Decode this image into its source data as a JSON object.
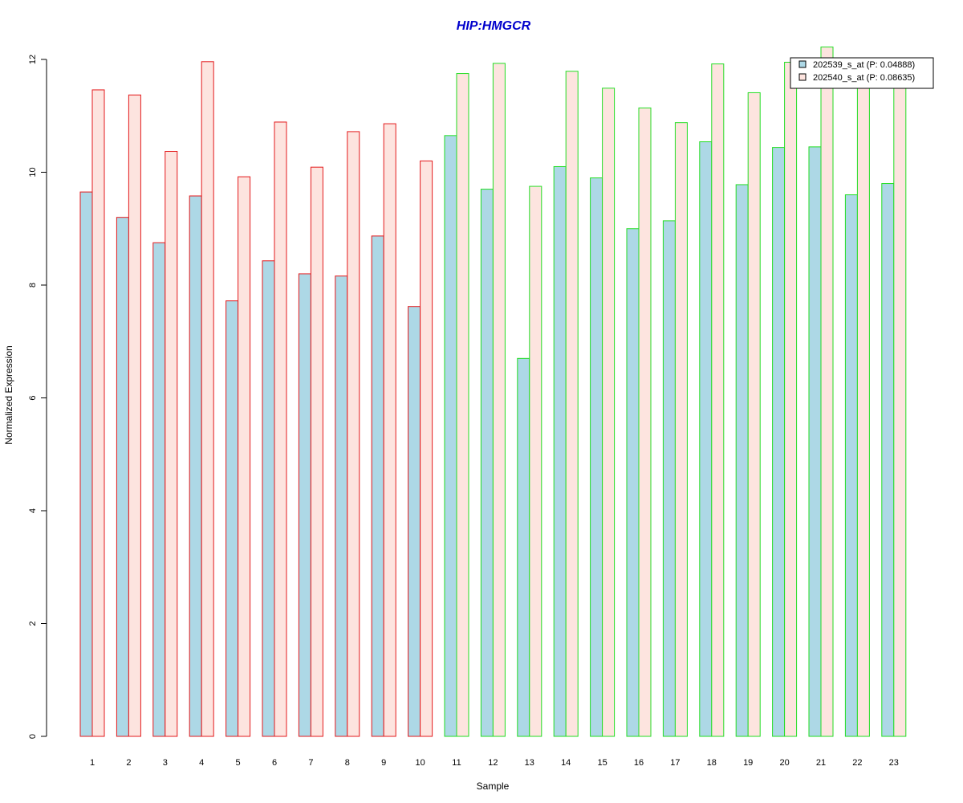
{
  "chart_data": {
    "type": "bar",
    "title": "HIP:HMGCR",
    "xlabel": "Sample",
    "ylabel": "Normalized Expression",
    "ylim": [
      0,
      12
    ],
    "yticks": [
      0,
      2,
      4,
      6,
      8,
      10,
      12
    ],
    "categories": [
      "1",
      "2",
      "3",
      "4",
      "5",
      "6",
      "7",
      "8",
      "9",
      "10",
      "11",
      "12",
      "13",
      "14",
      "15",
      "16",
      "17",
      "18",
      "19",
      "20",
      "21",
      "22",
      "23"
    ],
    "series": [
      {
        "name": "202539_s_at (P: 0.04888)",
        "fill": "#add8e6",
        "values": [
          9.65,
          9.2,
          8.75,
          9.58,
          7.72,
          8.43,
          8.2,
          8.16,
          8.87,
          7.62,
          10.65,
          9.7,
          6.7,
          10.1,
          9.9,
          9.0,
          9.14,
          10.54,
          9.78,
          10.44,
          10.45,
          9.6,
          9.8
        ]
      },
      {
        "name": "202540_s_at (P: 0.08635)",
        "fill": "#fde4df",
        "values": [
          11.46,
          11.37,
          10.37,
          11.96,
          9.92,
          10.89,
          10.09,
          10.72,
          10.86,
          10.2,
          11.75,
          11.93,
          9.75,
          11.79,
          11.49,
          11.14,
          10.88,
          11.92,
          11.41,
          11.95,
          12.22,
          11.8,
          11.8
        ]
      }
    ],
    "group_border_colors": [
      "#e31a1c",
      "#e31a1c",
      "#e31a1c",
      "#e31a1c",
      "#e31a1c",
      "#e31a1c",
      "#e31a1c",
      "#e31a1c",
      "#e31a1c",
      "#e31a1c",
      "#22dd22",
      "#22dd22",
      "#22dd22",
      "#22dd22",
      "#22dd22",
      "#22dd22",
      "#22dd22",
      "#22dd22",
      "#22dd22",
      "#22dd22",
      "#22dd22",
      "#22dd22",
      "#22dd22"
    ],
    "title_color": "#0000cc",
    "legend_position": "top-right",
    "grid": false
  }
}
